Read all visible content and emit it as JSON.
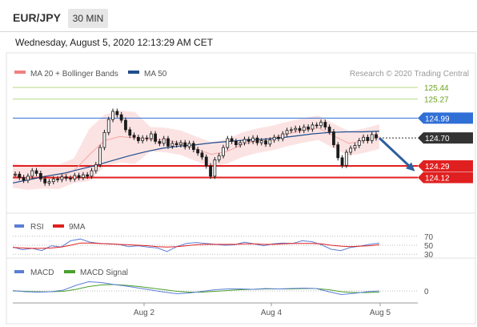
{
  "header": {
    "pair": "EUR/JPY",
    "timeframe": "30 MIN",
    "datetime": "Wednesday, August 5, 2020 12:13:29 AM CET"
  },
  "chart_data": [
    {
      "type": "line",
      "panel": "price",
      "legend": [
        {
          "label": "MA 20 + Bollinger Bands",
          "color": "#f08080"
        },
        {
          "label": "MA 50",
          "color": "#1f4e8c"
        }
      ],
      "source": "Research © 2020 Trading Central",
      "price_labels": [
        {
          "value": "125.44",
          "color": "#6aa31e",
          "style": "line"
        },
        {
          "value": "125.27",
          "color": "#6aa31e",
          "style": "line"
        },
        {
          "value": "124.99",
          "color": "#2f6fd6",
          "style": "badge"
        },
        {
          "value": "124.70",
          "color": "#333333",
          "style": "badge"
        },
        {
          "value": "124.29",
          "color": "#e02020",
          "style": "badge"
        },
        {
          "value": "124.12",
          "color": "#e02020",
          "style": "badge"
        }
      ],
      "ylim": [
        123.95,
        125.5
      ],
      "support": [
        124.29,
        124.12
      ],
      "resistance": [
        125.44,
        125.27
      ],
      "pivot": 124.99,
      "last_price": 124.7,
      "forecast": {
        "from": 124.7,
        "to": 124.26,
        "direction": "down",
        "color": "#2e5f9e"
      },
      "series": [
        {
          "name": "EUR/JPY",
          "values": [
            124.17,
            124.12,
            124.08,
            124.14,
            124.22,
            124.18,
            124.1,
            124.04,
            124.06,
            124.1,
            124.09,
            124.13,
            124.11,
            124.1,
            124.15,
            124.12,
            124.16,
            124.14,
            124.22,
            124.31,
            124.56,
            124.78,
            124.97,
            125.09,
            125.04,
            124.96,
            124.82,
            124.74,
            124.71,
            124.66,
            124.7,
            124.69,
            124.76,
            124.65,
            124.62,
            124.69,
            124.58,
            124.62,
            124.6,
            124.63,
            124.57,
            124.62,
            124.53,
            124.48,
            124.42,
            124.29,
            124.14,
            124.38,
            124.44,
            124.56,
            124.69,
            124.65,
            124.6,
            124.63,
            124.68,
            124.65,
            124.7,
            124.63,
            124.66,
            124.61,
            124.67,
            124.71,
            124.69,
            124.76,
            124.81,
            124.82,
            124.84,
            124.81,
            124.86,
            124.83,
            124.89,
            124.88,
            124.93,
            124.86,
            124.79,
            124.6,
            124.41,
            124.3,
            124.49,
            124.55,
            124.59,
            124.66,
            124.71,
            124.66,
            124.75,
            124.7
          ]
        },
        {
          "name": "MA 50",
          "values": [
            124.04,
            124.09,
            124.14,
            124.18,
            124.24,
            124.3,
            124.37,
            124.44,
            124.5,
            124.55,
            124.58,
            124.6,
            124.63,
            124.65,
            124.67,
            124.68,
            124.7,
            124.73,
            124.76,
            124.78,
            124.79,
            124.79,
            124.8
          ]
        },
        {
          "name": "MA 20",
          "values": [
            124.15,
            124.12,
            124.14,
            124.13,
            124.22,
            124.45,
            124.66,
            124.72,
            124.7,
            124.68,
            124.67,
            124.63,
            124.54,
            124.46,
            124.5,
            124.6,
            124.66,
            124.7,
            124.76,
            124.81,
            124.85,
            124.73,
            124.62,
            124.66,
            124.72
          ]
        }
      ]
    },
    {
      "type": "line",
      "panel": "rsi",
      "legend": [
        {
          "label": "RSI",
          "color": "#5b7fd6"
        },
        {
          "label": "9MA",
          "color": "#e02020"
        }
      ],
      "y_ticks": [
        "70",
        "50",
        "30"
      ],
      "ylim": [
        25,
        75
      ],
      "series": [
        {
          "name": "RSI",
          "values": [
            46,
            40,
            43,
            38,
            49,
            46,
            60,
            64,
            57,
            54,
            53,
            52,
            47,
            49,
            46,
            44,
            36,
            47,
            54,
            56,
            54,
            52,
            50,
            51,
            57,
            53,
            49,
            53,
            55,
            54,
            60,
            58,
            51,
            41,
            38,
            45,
            48,
            52,
            55
          ]
        },
        {
          "name": "9MA",
          "values": [
            45,
            44,
            43,
            43,
            44,
            46,
            50,
            55,
            55,
            54,
            53,
            52,
            51,
            50,
            49,
            47,
            46,
            47,
            49,
            51,
            52,
            52,
            52,
            52,
            53,
            53,
            52,
            52,
            53,
            54,
            54,
            54,
            53,
            50,
            48,
            47,
            48,
            49,
            51
          ]
        }
      ]
    },
    {
      "type": "line",
      "panel": "macd",
      "legend": [
        {
          "label": "MACD",
          "color": "#5b7fd6"
        },
        {
          "label": "MACD Signal",
          "color": "#4aa02c"
        }
      ],
      "y_ticks": [
        "0"
      ],
      "ylim": [
        -0.3,
        0.3
      ],
      "series": [
        {
          "name": "MACD",
          "values": [
            0.01,
            -0.02,
            -0.03,
            -0.02,
            0.02,
            0.14,
            0.23,
            0.21,
            0.16,
            0.12,
            0.07,
            0.02,
            -0.03,
            -0.07,
            -0.05,
            -0.01,
            0.03,
            0.05,
            0.05,
            0.04,
            0.06,
            0.05,
            0.06,
            0.07,
            0.06,
            -0.02,
            -0.09,
            -0.06,
            -0.02,
            0.0
          ]
        },
        {
          "name": "MACD Signal",
          "values": [
            0.0,
            -0.01,
            -0.02,
            -0.02,
            -0.01,
            0.04,
            0.11,
            0.15,
            0.16,
            0.14,
            0.11,
            0.07,
            0.03,
            -0.01,
            -0.03,
            -0.03,
            -0.01,
            0.01,
            0.03,
            0.04,
            0.05,
            0.05,
            0.05,
            0.06,
            0.06,
            0.03,
            -0.02,
            -0.04,
            -0.04,
            -0.03
          ]
        }
      ],
      "x_ticks": [
        "Aug 2",
        "Aug 4",
        "Aug 5"
      ]
    }
  ]
}
